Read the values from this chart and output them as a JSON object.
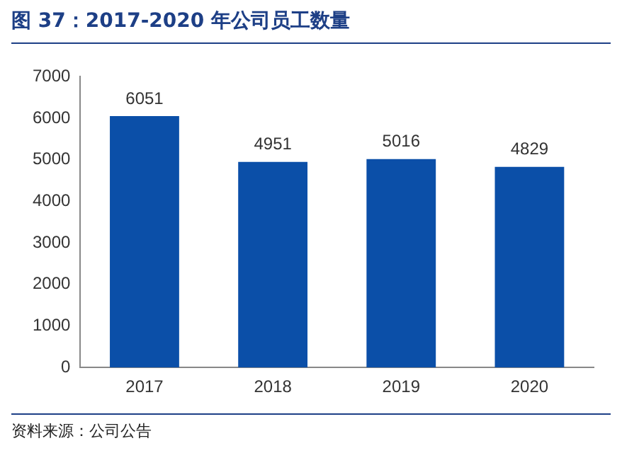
{
  "chart_data": {
    "type": "bar",
    "title": "图 37：2017-2020 年公司员工数量",
    "categories": [
      "2017",
      "2018",
      "2019",
      "2020"
    ],
    "values": [
      6051,
      4951,
      5016,
      4829
    ],
    "color": "#0b4fa8",
    "ylim": [
      0,
      7000
    ],
    "yticks": [
      0,
      1000,
      2000,
      3000,
      4000,
      5000,
      6000,
      7000
    ],
    "grid": false,
    "data_labels": true,
    "legend": false,
    "annotations": [
      "资料来源：公司公告"
    ]
  }
}
